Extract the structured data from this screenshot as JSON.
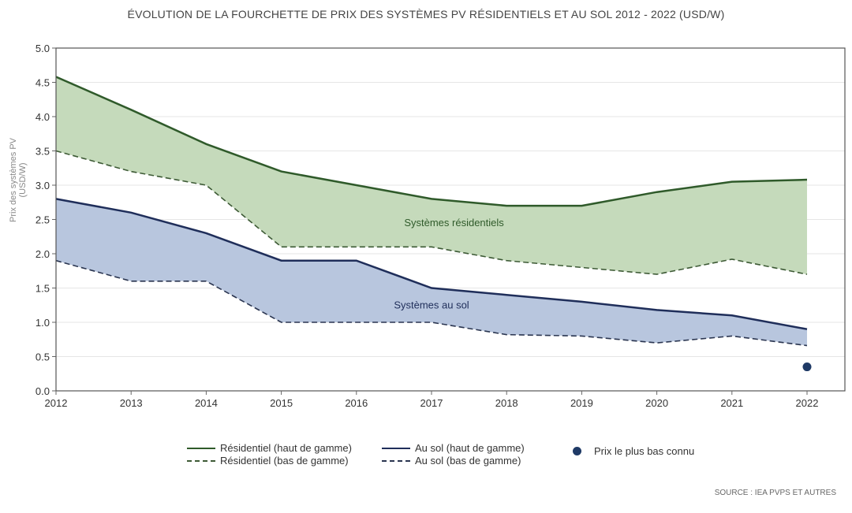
{
  "chart_data": {
    "type": "area",
    "title": "ÉVOLUTION DE LA FOURCHETTE DE PRIX DES SYSTÈMES PV RÉSIDENTIELS ET AU SOL 2012 - 2022 (USD/W)",
    "ylabel": "Prix des systèmes PV (USD/W)",
    "ylabel_lines": [
      "Prix des systèmes PV",
      "(USD/W)"
    ],
    "xlabel": "",
    "x": [
      2012,
      2013,
      2014,
      2015,
      2016,
      2017,
      2018,
      2019,
      2020,
      2021,
      2022
    ],
    "ylim": [
      0,
      5
    ],
    "yticks": [
      "0.0",
      "0.5",
      "1.0",
      "1.5",
      "2.0",
      "2.5",
      "3.0",
      "3.5",
      "4.0",
      "4.5",
      "5.0"
    ],
    "grid": true,
    "series": [
      {
        "name": "Résidentiel (haut de gamme)",
        "style": "solid",
        "color": "#2f5a2a",
        "values": [
          4.58,
          4.1,
          3.6,
          3.2,
          3.0,
          2.8,
          2.7,
          2.7,
          2.9,
          3.05,
          3.08
        ]
      },
      {
        "name": "Résidentiel (bas de gamme)",
        "style": "dashed",
        "color": "#3d5a35",
        "values": [
          3.5,
          3.2,
          3.0,
          2.1,
          2.1,
          2.1,
          1.9,
          1.8,
          1.7,
          1.92,
          1.7
        ]
      },
      {
        "name": "Au sol (haut de gamme)",
        "style": "solid",
        "color": "#1f2e5a",
        "values": [
          2.8,
          2.6,
          2.3,
          1.9,
          1.9,
          1.5,
          1.4,
          1.3,
          1.18,
          1.1,
          0.9
        ]
      },
      {
        "name": "Au sol (bas de gamme)",
        "style": "dashed",
        "color": "#2a3550",
        "values": [
          1.9,
          1.6,
          1.6,
          1.0,
          1.0,
          1.0,
          0.82,
          0.8,
          0.7,
          0.8,
          0.66
        ]
      }
    ],
    "bands": [
      {
        "label": "Systèmes résidentiels",
        "color": "#c5dabb",
        "text_color": "#2f5a2a"
      },
      {
        "label": "Systèmes au sol",
        "color": "#b8c6de",
        "text_color": "#1f2e5a"
      }
    ],
    "points": [
      {
        "name": "Prix le plus bas connu",
        "x": 2022,
        "y": 0.35,
        "color": "#1f3a66"
      }
    ],
    "legend_placement": "bottom",
    "source": "SOURCE : IEA PVPS ET AUTRES"
  }
}
